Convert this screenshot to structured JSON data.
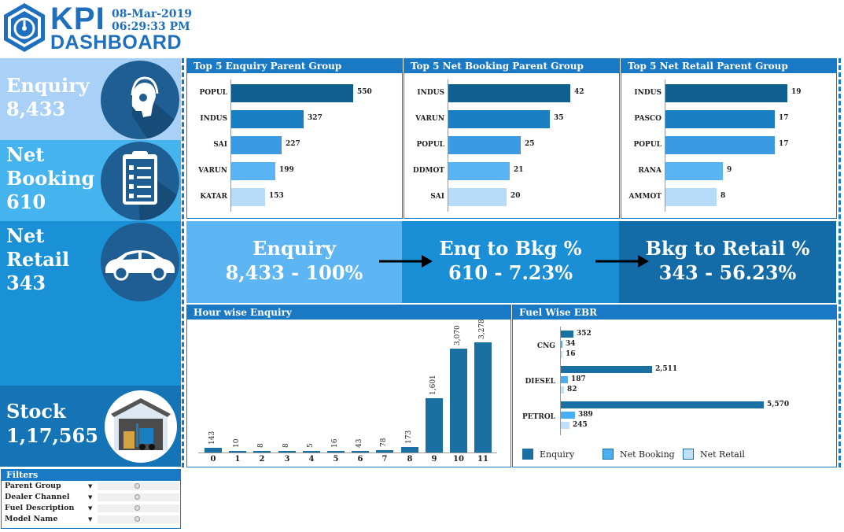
{
  "header": {
    "logo_kpi": "KPI",
    "logo_dashboard": "DASHBOARD",
    "date": "08-Mar-2019",
    "time": "06:29:33 PM"
  },
  "left": {
    "enquiry": {
      "label_1": "Enquiry",
      "value": "8,433",
      "icon": "headset-user-icon"
    },
    "net_booking": {
      "label_1": "Net",
      "label_2": "Booking",
      "value": "610",
      "icon": "clipboard-checklist-icon"
    },
    "net_retail": {
      "label_1": "Net",
      "label_2": "Retail",
      "value": "343",
      "icon": "car-icon"
    },
    "stock": {
      "label_1": "Stock",
      "value": "1,17,565",
      "icon": "warehouse-forklift-icon"
    }
  },
  "filters": {
    "title": "Filters",
    "items": [
      {
        "label": "Parent Group"
      },
      {
        "label": "Dealer Channel"
      },
      {
        "label": "Fuel Description"
      },
      {
        "label": "Model Name"
      }
    ]
  },
  "top_enquiry": {
    "title": "Top 5 Enquiry Parent Group",
    "categories": [
      "POPUL",
      "INDUS",
      "SAI",
      "VARUN",
      "KATAR"
    ],
    "values": [
      550,
      327,
      227,
      199,
      153
    ],
    "labels": [
      "550",
      "327",
      "227",
      "199",
      "153"
    ]
  },
  "top_booking": {
    "title": "Top 5 Net Booking Parent Group",
    "categories": [
      "INDUS",
      "VARUN",
      "POPUL",
      "DDMOT",
      "SAI"
    ],
    "values": [
      42,
      35,
      25,
      21,
      20
    ],
    "labels": [
      "42",
      "35",
      "25",
      "21",
      "20"
    ]
  },
  "top_retail": {
    "title": "Top 5 Net Retail Parent Group",
    "categories": [
      "INDUS",
      "PASCO",
      "POPUL",
      "RANA",
      "AMMOT"
    ],
    "values": [
      19,
      17,
      17,
      9,
      8
    ],
    "labels": [
      "19",
      "17",
      "17",
      "9",
      "8"
    ]
  },
  "funnel": {
    "enquiry_title": "Enquiry",
    "enquiry_value": "8,433 - 100%",
    "enq_bkg_title": "Enq to Bkg %",
    "enq_bkg_value": "610 - 7.23%",
    "bkg_ret_title": "Bkg to Retail %",
    "bkg_ret_value": "343 - 56.23%"
  },
  "colors": {
    "bar_scale": [
      "#0f5f91",
      "#1a7fc2",
      "#3a9be3",
      "#5ab3f2",
      "#b6dcfa"
    ],
    "fuel_enquiry": "#1a6fa3",
    "fuel_booking": "#4aaef2",
    "fuel_retail": "#bfe0fb"
  },
  "chart_data": [
    {
      "type": "bar",
      "title": "Hour wise Enquiry",
      "categories": [
        "0",
        "1",
        "2",
        "3",
        "4",
        "5",
        "6",
        "7",
        "8",
        "9",
        "10",
        "11"
      ],
      "values": [
        143,
        10,
        8,
        8,
        5,
        16,
        43,
        78,
        173,
        1601,
        3070,
        3278
      ],
      "labels": [
        "143",
        "10",
        "8",
        "8",
        "5",
        "16",
        "43",
        "78",
        "173",
        "1,601",
        "3,070",
        "3,278"
      ]
    },
    {
      "type": "bar",
      "title": "Fuel Wise EBR",
      "categories": [
        "CNG",
        "DIESEL",
        "PETROL"
      ],
      "series": [
        {
          "name": "Enquiry",
          "values": [
            352,
            2511,
            5570
          ],
          "labels": [
            "352",
            "2,511",
            "5,570"
          ]
        },
        {
          "name": "Net Booking",
          "values": [
            34,
            187,
            389
          ],
          "labels": [
            "34",
            "187",
            "389"
          ]
        },
        {
          "name": "Net Retail",
          "values": [
            16,
            82,
            245
          ],
          "labels": [
            "16",
            "82",
            "245"
          ]
        }
      ],
      "legend": "bottom"
    }
  ]
}
